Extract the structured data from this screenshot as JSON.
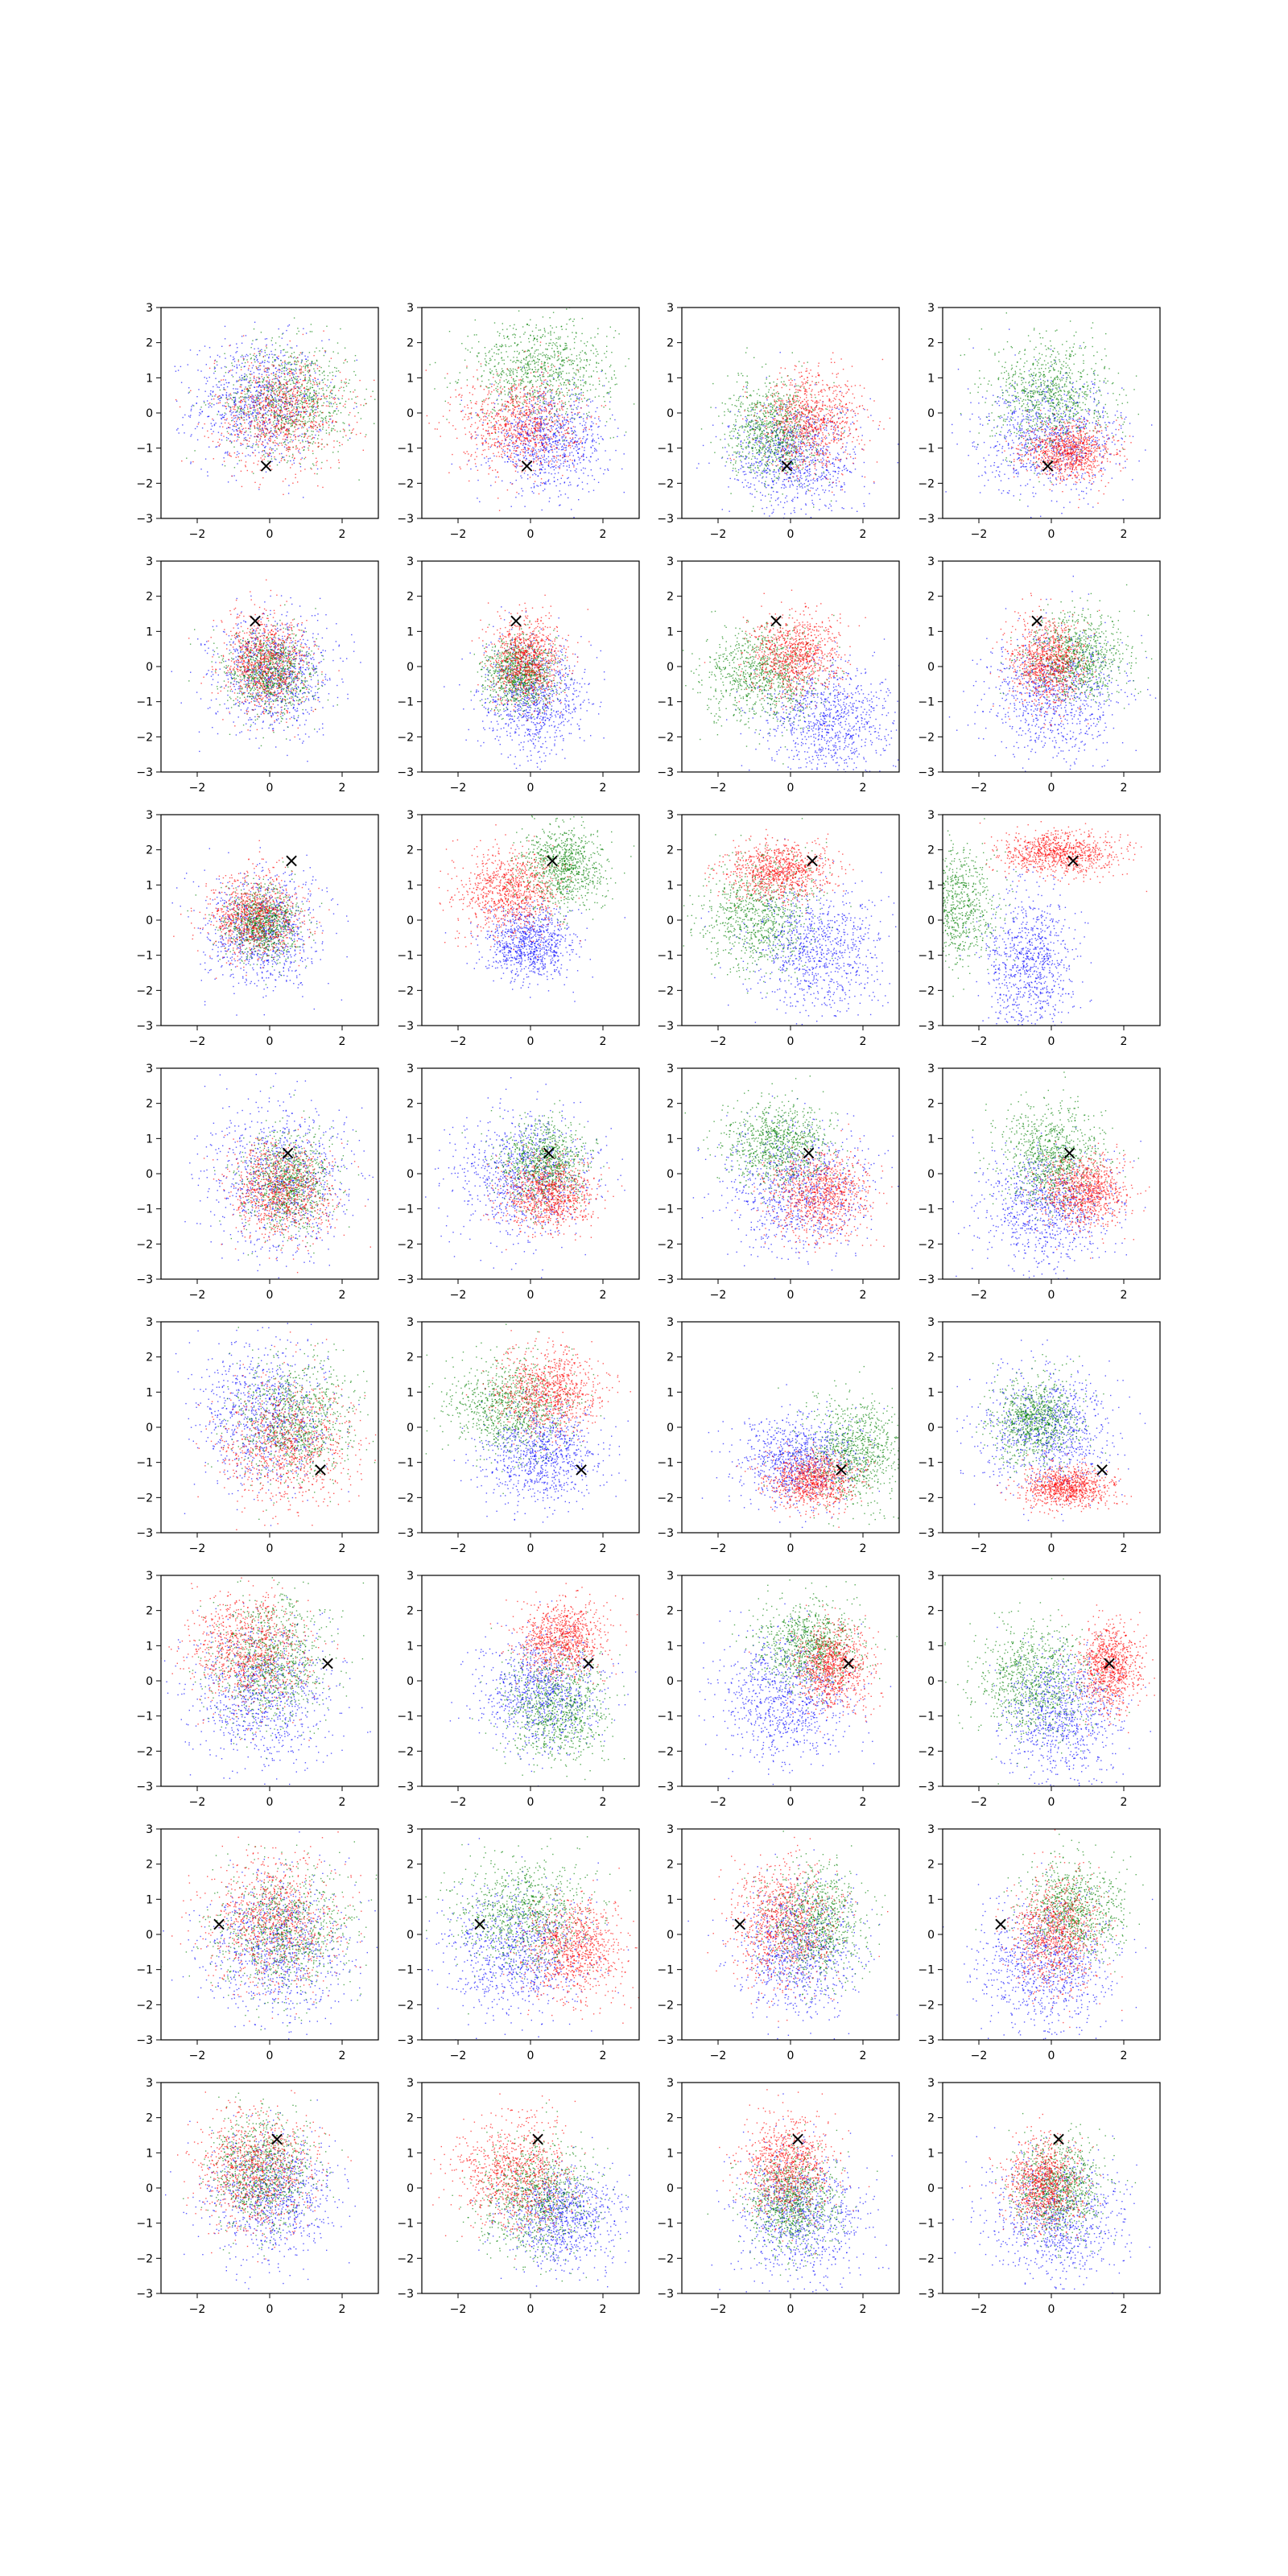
{
  "figure": {
    "grid_rows": 8,
    "grid_cols": 4,
    "colors": {
      "red": "#ff0000",
      "green": "#008000",
      "blue": "#0000ff",
      "axes": "#000000",
      "marker": "#000000"
    }
  },
  "chart_data": {
    "type": "scatter",
    "title": "",
    "xlabel": "",
    "ylabel": "",
    "xlim": [
      -3,
      3
    ],
    "ylim": [
      -3,
      3
    ],
    "xticks": [
      -2,
      0,
      2
    ],
    "yticks": [
      -3,
      -2,
      -1,
      0,
      1,
      2,
      3
    ],
    "xtick_labels": [
      "−2",
      "0",
      "2"
    ],
    "ytick_labels": [
      "−3",
      "−2",
      "−1",
      "0",
      "1",
      "2",
      "3"
    ],
    "grid": false,
    "legend": "none",
    "points_per_series": 900,
    "marker_symbol": "×",
    "rows": [
      {
        "marker": [
          -0.1,
          -1.5
        ],
        "panels": [
          [
            {
              "color": "red",
              "mx": 0.3,
              "my": 0.0,
              "sx": 0.9,
              "sy": 0.8
            },
            {
              "color": "green",
              "mx": 0.6,
              "my": 0.4,
              "sx": 0.9,
              "sy": 0.8
            },
            {
              "color": "blue",
              "mx": -0.3,
              "my": 0.3,
              "sx": 0.9,
              "sy": 0.9
            }
          ],
          [
            {
              "color": "red",
              "mx": -0.3,
              "my": -0.3,
              "sx": 0.8,
              "sy": 0.7
            },
            {
              "color": "green",
              "mx": 0.3,
              "my": 1.2,
              "sx": 1.0,
              "sy": 0.7
            },
            {
              "color": "blue",
              "mx": 0.5,
              "my": -0.8,
              "sx": 0.8,
              "sy": 0.7
            }
          ],
          [
            {
              "color": "red",
              "mx": 0.6,
              "my": -0.2,
              "sx": 0.7,
              "sy": 0.7
            },
            {
              "color": "green",
              "mx": -0.5,
              "my": -0.5,
              "sx": 0.6,
              "sy": 0.7
            },
            {
              "color": "blue",
              "mx": 0.1,
              "my": -1.3,
              "sx": 0.9,
              "sy": 0.8
            }
          ],
          [
            {
              "color": "red",
              "mx": 0.5,
              "my": -1.1,
              "sx": 0.6,
              "sy": 0.4
            },
            {
              "color": "green",
              "mx": 0.0,
              "my": 0.5,
              "sx": 0.8,
              "sy": 0.8
            },
            {
              "color": "blue",
              "mx": 0.0,
              "my": -0.7,
              "sx": 1.0,
              "sy": 0.8
            }
          ]
        ]
      },
      {
        "marker": [
          -0.4,
          1.3
        ],
        "panels": [
          [
            {
              "color": "red",
              "mx": -0.1,
              "my": 0.1,
              "sx": 0.6,
              "sy": 0.7
            },
            {
              "color": "green",
              "mx": 0.0,
              "my": -0.2,
              "sx": 0.6,
              "sy": 0.6
            },
            {
              "color": "blue",
              "mx": 0.1,
              "my": -0.2,
              "sx": 0.8,
              "sy": 0.8
            }
          ],
          [
            {
              "color": "red",
              "mx": -0.1,
              "my": 0.2,
              "sx": 0.5,
              "sy": 0.6
            },
            {
              "color": "green",
              "mx": -0.3,
              "my": -0.2,
              "sx": 0.5,
              "sy": 0.5
            },
            {
              "color": "blue",
              "mx": 0.1,
              "my": -0.9,
              "sx": 0.7,
              "sy": 0.8
            }
          ],
          [
            {
              "color": "red",
              "mx": 0.1,
              "my": 0.3,
              "sx": 0.6,
              "sy": 0.6
            },
            {
              "color": "green",
              "mx": -0.8,
              "my": -0.3,
              "sx": 0.8,
              "sy": 0.7
            },
            {
              "color": "blue",
              "mx": 1.0,
              "my": -1.5,
              "sx": 0.9,
              "sy": 0.8
            }
          ],
          [
            {
              "color": "red",
              "mx": -0.1,
              "my": 0.1,
              "sx": 0.5,
              "sy": 0.6
            },
            {
              "color": "green",
              "mx": 0.7,
              "my": 0.3,
              "sx": 0.7,
              "sy": 0.6
            },
            {
              "color": "blue",
              "mx": 0.1,
              "my": -0.8,
              "sx": 0.9,
              "sy": 0.9
            }
          ]
        ]
      },
      {
        "marker": [
          0.6,
          1.7
        ],
        "panels": [
          [
            {
              "color": "red",
              "mx": -0.4,
              "my": 0.1,
              "sx": 0.6,
              "sy": 0.6
            },
            {
              "color": "green",
              "mx": -0.2,
              "my": -0.1,
              "sx": 0.5,
              "sy": 0.5
            },
            {
              "color": "blue",
              "mx": -0.2,
              "my": -0.3,
              "sx": 0.8,
              "sy": 0.8
            }
          ],
          [
            {
              "color": "red",
              "mx": -0.6,
              "my": 0.8,
              "sx": 0.7,
              "sy": 0.6
            },
            {
              "color": "green",
              "mx": 0.9,
              "my": 1.5,
              "sx": 0.6,
              "sy": 0.6
            },
            {
              "color": "blue",
              "mx": 0.0,
              "my": -0.7,
              "sx": 0.6,
              "sy": 0.5
            }
          ],
          [
            {
              "color": "red",
              "mx": -0.3,
              "my": 1.4,
              "sx": 0.7,
              "sy": 0.4
            },
            {
              "color": "green",
              "mx": -0.9,
              "my": 0.1,
              "sx": 0.8,
              "sy": 0.8
            },
            {
              "color": "blue",
              "mx": 0.8,
              "my": -0.8,
              "sx": 0.9,
              "sy": 0.9
            }
          ],
          [
            {
              "color": "red",
              "mx": 0.2,
              "my": 1.9,
              "sx": 0.8,
              "sy": 0.3
            },
            {
              "color": "green",
              "mx": -2.7,
              "my": 0.4,
              "sx": 0.6,
              "sy": 0.8
            },
            {
              "color": "blue",
              "mx": -0.6,
              "my": -1.2,
              "sx": 0.6,
              "sy": 1.0
            }
          ]
        ]
      },
      {
        "marker": [
          0.5,
          0.6
        ],
        "panels": [
          [
            {
              "color": "red",
              "mx": 0.3,
              "my": -0.5,
              "sx": 0.7,
              "sy": 0.7
            },
            {
              "color": "green",
              "mx": 0.5,
              "my": -0.3,
              "sx": 0.6,
              "sy": 0.7
            },
            {
              "color": "blue",
              "mx": 0.3,
              "my": -0.2,
              "sx": 1.0,
              "sy": 1.0
            }
          ],
          [
            {
              "color": "red",
              "mx": 0.5,
              "my": -0.6,
              "sx": 0.6,
              "sy": 0.5
            },
            {
              "color": "green",
              "mx": 0.4,
              "my": 0.3,
              "sx": 0.6,
              "sy": 0.6
            },
            {
              "color": "blue",
              "mx": -0.2,
              "my": -0.1,
              "sx": 1.0,
              "sy": 0.9
            }
          ],
          [
            {
              "color": "red",
              "mx": 0.8,
              "my": -0.6,
              "sx": 0.7,
              "sy": 0.6
            },
            {
              "color": "green",
              "mx": -0.3,
              "my": 0.8,
              "sx": 0.7,
              "sy": 0.6
            },
            {
              "color": "blue",
              "mx": 0.2,
              "my": -0.5,
              "sx": 1.0,
              "sy": 0.9
            }
          ],
          [
            {
              "color": "red",
              "mx": 0.9,
              "my": -0.5,
              "sx": 0.6,
              "sy": 0.5
            },
            {
              "color": "green",
              "mx": 0.0,
              "my": 0.5,
              "sx": 0.7,
              "sy": 0.7
            },
            {
              "color": "blue",
              "mx": -0.1,
              "my": -1.0,
              "sx": 0.9,
              "sy": 0.8
            }
          ]
        ]
      },
      {
        "marker": [
          1.4,
          -1.2
        ],
        "panels": [
          [
            {
              "color": "red",
              "mx": 0.5,
              "my": -0.5,
              "sx": 0.9,
              "sy": 0.9
            },
            {
              "color": "green",
              "mx": 0.7,
              "my": 0.2,
              "sx": 0.8,
              "sy": 0.8
            },
            {
              "color": "blue",
              "mx": -0.2,
              "my": 0.3,
              "sx": 0.9,
              "sy": 1.0
            }
          ],
          [
            {
              "color": "red",
              "mx": 0.5,
              "my": 1.0,
              "sx": 0.7,
              "sy": 0.6
            },
            {
              "color": "green",
              "mx": -0.6,
              "my": 0.6,
              "sx": 0.8,
              "sy": 0.7
            },
            {
              "color": "blue",
              "mx": 0.3,
              "my": -0.8,
              "sx": 0.8,
              "sy": 0.7
            }
          ],
          [
            {
              "color": "red",
              "mx": 0.6,
              "my": -1.5,
              "sx": 0.6,
              "sy": 0.4
            },
            {
              "color": "green",
              "mx": 1.8,
              "my": -0.7,
              "sx": 0.7,
              "sy": 0.8
            },
            {
              "color": "blue",
              "mx": 0.2,
              "my": -0.9,
              "sx": 0.8,
              "sy": 0.6
            }
          ],
          [
            {
              "color": "red",
              "mx": 0.4,
              "my": -1.7,
              "sx": 0.6,
              "sy": 0.3
            },
            {
              "color": "green",
              "mx": -0.4,
              "my": 0.2,
              "sx": 0.6,
              "sy": 0.6
            },
            {
              "color": "blue",
              "mx": -0.1,
              "my": -0.1,
              "sx": 0.9,
              "sy": 0.9
            }
          ]
        ]
      },
      {
        "marker": [
          1.6,
          0.5
        ],
        "panels": [
          [
            {
              "color": "red",
              "mx": -0.6,
              "my": 0.9,
              "sx": 0.8,
              "sy": 0.8
            },
            {
              "color": "green",
              "mx": 0.0,
              "my": 0.6,
              "sx": 0.8,
              "sy": 0.9
            },
            {
              "color": "blue",
              "mx": -0.2,
              "my": -0.4,
              "sx": 1.0,
              "sy": 1.0
            }
          ],
          [
            {
              "color": "red",
              "mx": 0.9,
              "my": 1.2,
              "sx": 0.6,
              "sy": 0.5
            },
            {
              "color": "green",
              "mx": 0.7,
              "my": -0.8,
              "sx": 0.7,
              "sy": 0.8
            },
            {
              "color": "blue",
              "mx": 0.3,
              "my": -0.3,
              "sx": 0.8,
              "sy": 0.8
            }
          ],
          [
            {
              "color": "red",
              "mx": 1.2,
              "my": 0.4,
              "sx": 0.5,
              "sy": 0.6
            },
            {
              "color": "green",
              "mx": 0.5,
              "my": 1.0,
              "sx": 0.7,
              "sy": 0.6
            },
            {
              "color": "blue",
              "mx": -0.2,
              "my": -0.5,
              "sx": 0.9,
              "sy": 0.9
            }
          ],
          [
            {
              "color": "red",
              "mx": 1.6,
              "my": 0.4,
              "sx": 0.4,
              "sy": 0.6
            },
            {
              "color": "green",
              "mx": -0.5,
              "my": 0.0,
              "sx": 0.8,
              "sy": 0.8
            },
            {
              "color": "blue",
              "mx": 0.3,
              "my": -1.0,
              "sx": 0.8,
              "sy": 0.9
            }
          ]
        ]
      },
      {
        "marker": [
          -1.4,
          0.3
        ],
        "panels": [
          [
            {
              "color": "red",
              "mx": 0.1,
              "my": 0.4,
              "sx": 0.9,
              "sy": 0.9
            },
            {
              "color": "green",
              "mx": 0.4,
              "my": 0.1,
              "sx": 0.9,
              "sy": 0.9
            },
            {
              "color": "blue",
              "mx": 0.2,
              "my": -0.4,
              "sx": 1.0,
              "sy": 1.0
            }
          ],
          [
            {
              "color": "red",
              "mx": 1.2,
              "my": -0.4,
              "sx": 0.7,
              "sy": 0.7
            },
            {
              "color": "green",
              "mx": -0.2,
              "my": 0.6,
              "sx": 0.9,
              "sy": 0.8
            },
            {
              "color": "blue",
              "mx": -0.4,
              "my": -0.5,
              "sx": 1.0,
              "sy": 0.9
            }
          ],
          [
            {
              "color": "red",
              "mx": -0.2,
              "my": 0.3,
              "sx": 0.7,
              "sy": 0.9
            },
            {
              "color": "green",
              "mx": 0.7,
              "my": 0.3,
              "sx": 0.7,
              "sy": 0.8
            },
            {
              "color": "blue",
              "mx": 0.2,
              "my": -0.4,
              "sx": 0.8,
              "sy": 0.9
            }
          ],
          [
            {
              "color": "red",
              "mx": 0.1,
              "my": 0.0,
              "sx": 0.6,
              "sy": 0.8
            },
            {
              "color": "green",
              "mx": 0.6,
              "my": 0.7,
              "sx": 0.7,
              "sy": 0.7
            },
            {
              "color": "blue",
              "mx": -0.2,
              "my": -0.9,
              "sx": 0.9,
              "sy": 0.9
            }
          ]
        ]
      },
      {
        "marker": [
          0.2,
          1.4
        ],
        "panels": [
          [
            {
              "color": "red",
              "mx": -0.4,
              "my": 0.5,
              "sx": 0.8,
              "sy": 0.8
            },
            {
              "color": "green",
              "mx": -0.2,
              "my": 0.5,
              "sx": 0.7,
              "sy": 0.8
            },
            {
              "color": "blue",
              "mx": 0.0,
              "my": -0.2,
              "sx": 0.9,
              "sy": 0.9
            }
          ],
          [
            {
              "color": "red",
              "mx": -0.4,
              "my": 0.4,
              "sx": 0.8,
              "sy": 0.8
            },
            {
              "color": "green",
              "mx": 0.2,
              "my": -0.3,
              "sx": 0.8,
              "sy": 0.8
            },
            {
              "color": "blue",
              "mx": 0.9,
              "my": -0.8,
              "sx": 0.8,
              "sy": 0.7
            }
          ],
          [
            {
              "color": "red",
              "mx": -0.1,
              "my": 0.6,
              "sx": 0.6,
              "sy": 0.7
            },
            {
              "color": "green",
              "mx": 0.1,
              "my": -0.4,
              "sx": 0.6,
              "sy": 0.7
            },
            {
              "color": "blue",
              "mx": 0.3,
              "my": -0.8,
              "sx": 0.9,
              "sy": 0.9
            }
          ],
          [
            {
              "color": "red",
              "mx": -0.2,
              "my": 0.1,
              "sx": 0.5,
              "sy": 0.6
            },
            {
              "color": "green",
              "mx": 0.2,
              "my": 0.0,
              "sx": 0.6,
              "sy": 0.7
            },
            {
              "color": "blue",
              "mx": 0.2,
              "my": -0.8,
              "sx": 0.9,
              "sy": 0.9
            }
          ]
        ]
      }
    ]
  }
}
